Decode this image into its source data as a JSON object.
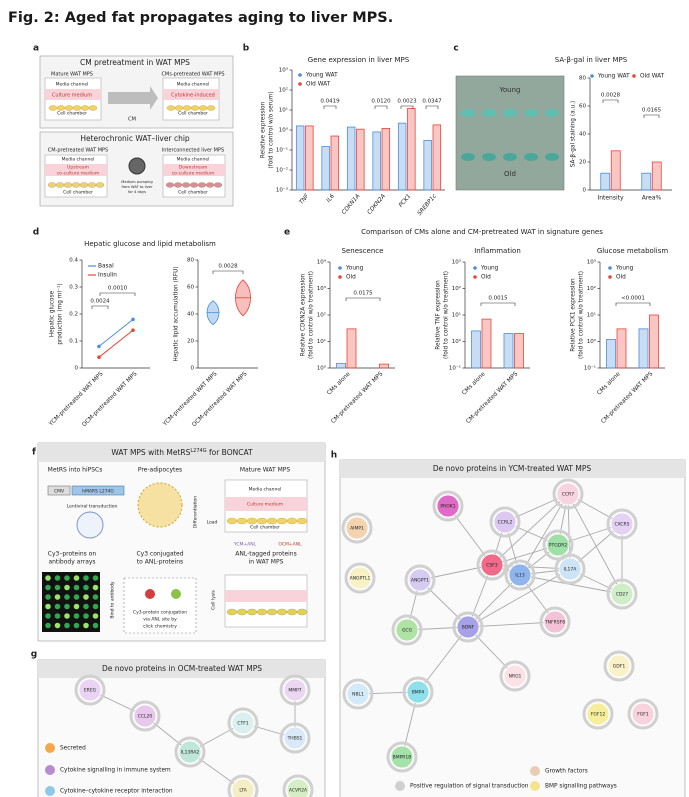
{
  "figure": {
    "title": "Fig. 2: Aged fat propagates aging to liver MPS.",
    "panels": {
      "a": {
        "label": "a",
        "texts": [
          "CM pretreatment in WAT MPS",
          "Mature WAT MPS",
          "CMs-pretreated WAT MPS",
          "Media channel",
          "Media channel",
          "Culture medium",
          "Cytokine-induced",
          "Cell chamber",
          "Cell chamber",
          "CM",
          "Heterochronic WAT–liver chip",
          "CM-pretreated WAT MPS",
          "Interconnected liver MPS",
          "Media channel",
          "Media channel",
          "Upstream",
          "co-culture medium",
          "Downstream",
          "co-culture medium",
          "Cell chamber",
          "Cell chamber",
          "Medium pumping",
          "from WAT to liver",
          "for 4 days"
        ]
      },
      "b": {
        "label": "b"
      },
      "c": {
        "label": "c",
        "image_labels": [
          "Young",
          "Old"
        ]
      },
      "d": {
        "label": "d",
        "title": "Hepatic glucose and lipid metabolism"
      },
      "e": {
        "label": "e",
        "title": "Comparison of CMs alone and CM-pretreated WAT in signature genes"
      },
      "f": {
        "label": "f",
        "header": [
          "WAT MPS with MetRS",
          "L274G",
          " for BONCAT"
        ],
        "texts": [
          "MetRS into hiPSCs",
          "Pre-adipocytes",
          "Mature WAT MPS",
          "CMV",
          "hMARS L274G",
          "Lentiviral transduction",
          "Differentiation",
          "Load",
          "Media channel",
          "Culture medium",
          "Cell chamber",
          "YCM+ANL",
          "OCM+ANL",
          "Cy3–proteins on",
          "antibody arrays",
          "Cy3 conjugated",
          "to ANL-proteins",
          "ANL-tagged proteins",
          "in WAT MPS",
          "Bind to antibody",
          "Cy3-protein conjugation",
          "via ANL site by",
          "click chemistry",
          "Cell lysis"
        ]
      },
      "g": {
        "label": "g",
        "title": "De novo proteins in OCM-treated WAT MPS",
        "nodes": [
          "EREG",
          "CCL20",
          "IL13RA2",
          "CTF1",
          "MMP7",
          "THBS1",
          "LTA",
          "ACVR2A"
        ],
        "legend": [
          "Secreted",
          "Cytokine signalling in immune system",
          "Cytokine–cytokine receptor interaction"
        ]
      },
      "h": {
        "label": "h",
        "title": "De novo proteins in YCM-treated WAT MPS",
        "nodes": [
          "CCR7",
          "PROK1",
          "CCRL2",
          "CXCR5",
          "AIMP1",
          "PTGDR2",
          "ANGPTL1",
          "CSF3",
          "IL17A",
          "ANGPT1",
          "IL13",
          "CD27",
          "GCG",
          "BDNF",
          "TNFRSF8",
          "NRG1",
          "GDF1",
          "BMP4",
          "NBL1",
          "FGF12",
          "FGF1",
          "BMPR1B"
        ],
        "legend": [
          "Positive regulation of signal transduction",
          "Growth factors",
          "BMP signalling pathways"
        ]
      }
    }
  },
  "chart_data": [
    {
      "type": "bar",
      "title": "Gene expression in liver MPS",
      "y_label": [
        "Relative expression",
        "(fold to control w/o serum)"
      ],
      "categories": [
        "TNF",
        "IL6",
        "CDKN1A",
        "CDKN2A",
        "PCK1",
        "SREBP1c"
      ],
      "series": [
        {
          "name": "Young WAT",
          "color": "#4a90d9",
          "values": [
            1.6,
            0.15,
            1.4,
            0.8,
            2.2,
            0.3
          ]
        },
        {
          "name": "Old WAT",
          "color": "#e8453c",
          "values": [
            1.6,
            0.5,
            1.1,
            1.2,
            12,
            1.8
          ]
        }
      ],
      "ylim": [
        0.001,
        1000
      ],
      "yticks": [
        {
          "value": 0.001,
          "label": "10⁻³"
        },
        {
          "value": 0.01,
          "label": "10⁻²"
        },
        {
          "value": 0.1,
          "label": "10⁻¹"
        },
        {
          "value": 1,
          "label": "10⁰"
        },
        {
          "value": 10,
          "label": "10¹"
        },
        {
          "value": 100,
          "label": "10²"
        },
        {
          "value": 1000,
          "label": "10³"
        }
      ],
      "log_scale": true,
      "annotations": [
        "0.0419",
        "0.0120",
        "0.0023",
        "0.0347"
      ]
    },
    {
      "type": "bar",
      "title": "SA-β-gal in liver MPS",
      "y_label": [
        "SA-β-gal staining (a.u.)"
      ],
      "categories": [
        "Intensity",
        "Area%"
      ],
      "series": [
        {
          "name": "Young WAT",
          "color": "#4a90d9",
          "values": [
            12,
            12
          ]
        },
        {
          "name": "Old WAT",
          "color": "#e8453c",
          "values": [
            28,
            20
          ]
        }
      ],
      "ylim": [
        0,
        80
      ],
      "yticks": [
        0,
        20,
        40,
        60,
        80
      ],
      "annotations": [
        "0.0028",
        "0.0165"
      ]
    },
    {
      "type": "line",
      "y_label": [
        "Hepatic glucose",
        "production (mg ml⁻¹)"
      ],
      "categories": [
        "YCM-pretreated WAT MPS",
        "OCM-pretreated WAT MPS"
      ],
      "series": [
        {
          "name": "Basal",
          "color": "#4a90d9",
          "values": [
            0.08,
            0.18
          ]
        },
        {
          "name": "Insulin",
          "color": "#e8453c",
          "values": [
            0.04,
            0.14
          ]
        }
      ],
      "ylim": [
        0,
        0.4
      ],
      "yticks": [
        0,
        0.1,
        0.2,
        0.3,
        0.4
      ],
      "annotations": [
        "0.0024",
        "0.0010"
      ]
    },
    {
      "type": "violin",
      "y_label": [
        "Hepatic lipid accumulation (RFU)"
      ],
      "categories": [
        "YCM-pretreated WAT MPS",
        "OCM-pretreated WAT MPS"
      ],
      "values": [
        41,
        52
      ],
      "colors": [
        "#4a90d9",
        "#e8453c"
      ],
      "ylim": [
        0,
        80
      ],
      "yticks": [
        0,
        20,
        40,
        60,
        80
      ],
      "annotations": [
        "0.0028"
      ]
    },
    {
      "type": "bar",
      "title": "Senescence",
      "y_label": [
        "Relative CDKN2A expression",
        "(fold to control w/o treatment)"
      ],
      "categories": [
        "CMs alone",
        "CM-pretreated WAT MPS"
      ],
      "series": [
        {
          "name": "Young",
          "color": "#4a90d9",
          "values": [
            1.5,
            1.0
          ]
        },
        {
          "name": "Old",
          "color": "#e8453c",
          "values": [
            30,
            1.4
          ]
        }
      ],
      "ylim": [
        1,
        10000
      ],
      "yticks": [
        {
          "value": 1,
          "label": "10⁰"
        },
        {
          "value": 10,
          "label": "10¹"
        },
        {
          "value": 100,
          "label": "10²"
        },
        {
          "value": 1000,
          "label": "10³"
        },
        {
          "value": 10000,
          "label": "10⁴"
        }
      ],
      "log_scale": true,
      "annotations": [
        "0.0175"
      ]
    },
    {
      "type": "bar",
      "title": "Inflammation",
      "y_label": [
        "Relative TNF expression",
        "(fold to control w/o treatment)"
      ],
      "categories": [
        "CMs alone",
        "CM-pretreated WAT MPS"
      ],
      "series": [
        {
          "name": "Young",
          "color": "#4a90d9",
          "values": [
            2.5,
            2
          ]
        },
        {
          "name": "Old",
          "color": "#e8453c",
          "values": [
            7,
            2
          ]
        }
      ],
      "ylim": [
        0.1,
        1000
      ],
      "yticks": [
        {
          "value": 0.1,
          "label": "10⁻¹"
        },
        {
          "value": 1,
          "label": "10⁰"
        },
        {
          "value": 10,
          "label": "10¹"
        },
        {
          "value": 100,
          "label": "10²"
        },
        {
          "value": 1000,
          "label": "10³"
        }
      ],
      "log_scale": true,
      "annotations": [
        "0.0015"
      ]
    },
    {
      "type": "bar",
      "title": "Glucose metabolism",
      "y_label": [
        "Relative PCK1 expression",
        "(fold to control w/o treatment)"
      ],
      "categories": [
        "CMs alone",
        "CM-pretreated WAT MPS"
      ],
      "series": [
        {
          "name": "Young",
          "color": "#4a90d9",
          "values": [
            1.2,
            3
          ]
        },
        {
          "name": "Old",
          "color": "#e8453c",
          "values": [
            3,
            10
          ]
        }
      ],
      "ylim": [
        0.1,
        1000
      ],
      "yticks": [
        {
          "value": 0.1,
          "label": "10⁻¹"
        },
        {
          "value": 1,
          "label": "10⁰"
        },
        {
          "value": 10,
          "label": "10¹"
        },
        {
          "value": 100,
          "label": "10²"
        },
        {
          "value": 1000,
          "label": "10³"
        }
      ],
      "log_scale": true,
      "annotations": [
        "<0.0001"
      ]
    }
  ]
}
